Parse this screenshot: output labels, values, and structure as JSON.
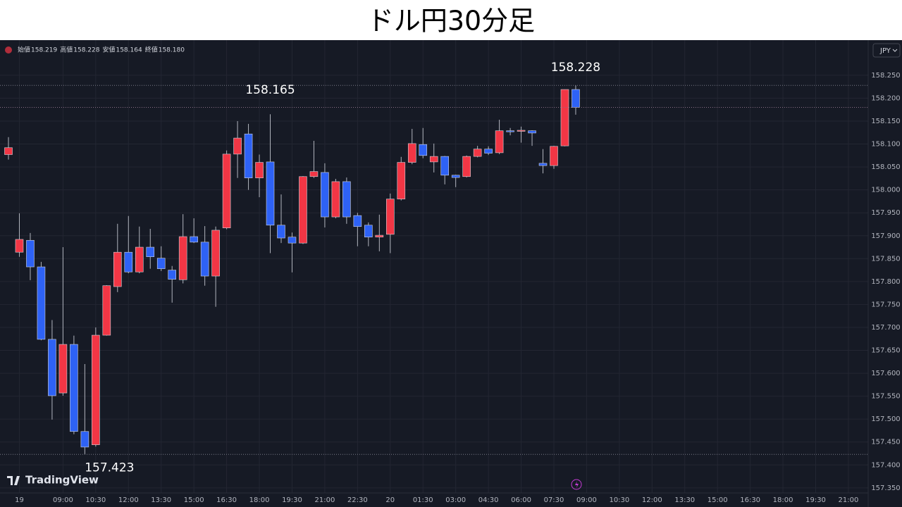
{
  "chart_data": {
    "type": "candlestick",
    "title": "ドル円30分足",
    "header": {
      "labels": [
        "始値",
        "高値",
        "安値",
        "終値"
      ],
      "values": [
        "158.219",
        "158.228",
        "158.164",
        "158.180"
      ]
    },
    "currency": "JPY",
    "brand": "TradingView",
    "up_color": "#f23645",
    "down_color": "#2e62f5",
    "grid": true,
    "ylim": [
      157.339,
      158.322
    ],
    "yticks": [
      {
        "value": 157.35,
        "label": "157.350"
      },
      {
        "value": 157.4,
        "label": "157.400"
      },
      {
        "value": 157.45,
        "label": "157.450"
      },
      {
        "value": 157.5,
        "label": "157.500"
      },
      {
        "value": 157.55,
        "label": "157.550"
      },
      {
        "value": 157.6,
        "label": "157.600"
      },
      {
        "value": 157.65,
        "label": "157.650"
      },
      {
        "value": 157.7,
        "label": "157.700"
      },
      {
        "value": 157.75,
        "label": "157.750"
      },
      {
        "value": 157.8,
        "label": "157.800"
      },
      {
        "value": 157.85,
        "label": "157.850"
      },
      {
        "value": 157.9,
        "label": "157.900"
      },
      {
        "value": 157.95,
        "label": "157.950"
      },
      {
        "value": 158.0,
        "label": "158.000"
      },
      {
        "value": 158.05,
        "label": "158.050"
      },
      {
        "value": 158.1,
        "label": "158.100"
      },
      {
        "value": 158.15,
        "label": "158.150"
      },
      {
        "value": 158.2,
        "label": "158.200"
      },
      {
        "value": 158.25,
        "label": "158.250"
      }
    ],
    "categories": [
      null,
      "19",
      null,
      null,
      null,
      "09:00",
      null,
      null,
      "10:30",
      null,
      null,
      "12:00",
      null,
      null,
      "13:30",
      null,
      null,
      "15:00",
      null,
      null,
      "16:30",
      null,
      null,
      "18:00",
      null,
      null,
      "19:30",
      null,
      null,
      "21:00",
      null,
      null,
      "22:30",
      null,
      null,
      "20",
      null,
      null,
      "01:30",
      null,
      null,
      "03:00",
      null,
      null,
      "04:30",
      null,
      null,
      "06:00",
      null,
      null,
      "07:30",
      null,
      null,
      "09:00",
      null,
      null,
      "10:30",
      null,
      null,
      "12:00",
      null,
      null,
      "13:30",
      null,
      null,
      "15:00",
      null,
      null,
      "16:30",
      null,
      null,
      "18:00",
      null,
      null,
      "19:30",
      null,
      null,
      "21:00"
    ],
    "open": [
      158.077,
      157.864,
      157.89,
      157.832,
      157.674,
      157.557,
      157.663,
      157.473,
      157.444,
      157.683,
      157.789,
      157.864,
      157.821,
      157.875,
      157.851,
      157.825,
      157.804,
      157.898,
      157.886,
      157.812,
      157.917,
      158.078,
      158.122,
      158.026,
      158.061,
      157.923,
      157.897,
      157.884,
      158.029,
      158.038,
      157.941,
      158.018,
      157.944,
      157.923,
      157.897,
      157.903,
      157.98,
      158.06,
      158.099,
      158.061,
      158.073,
      158.032,
      158.029,
      158.073,
      158.089,
      158.081,
      158.129,
      158.13,
      158.129,
      158.058,
      158.053,
      158.096,
      158.219,
      null,
      null,
      null,
      null,
      null,
      null,
      null,
      null,
      null,
      null,
      null,
      null,
      null,
      null,
      null,
      null,
      null,
      null,
      null,
      null,
      null,
      null,
      null,
      null,
      null
    ],
    "high": [
      158.115,
      157.949,
      157.906,
      157.843,
      157.716,
      157.875,
      157.682,
      157.62,
      157.7,
      157.792,
      157.926,
      157.943,
      157.92,
      157.915,
      157.877,
      157.834,
      157.947,
      157.938,
      157.921,
      157.92,
      158.086,
      158.15,
      158.144,
      158.077,
      158.165,
      157.99,
      157.907,
      158.03,
      158.107,
      158.058,
      158.024,
      158.027,
      157.95,
      157.929,
      157.946,
      157.992,
      158.072,
      158.133,
      158.135,
      158.101,
      158.074,
      158.033,
      158.075,
      158.096,
      158.095,
      158.153,
      158.135,
      158.138,
      158.13,
      158.089,
      158.096,
      158.219,
      158.228,
      null,
      null,
      null,
      null,
      null,
      null,
      null,
      null,
      null,
      null,
      null,
      null,
      null,
      null,
      null,
      null,
      null,
      null,
      null,
      null,
      null,
      null,
      null,
      null,
      null
    ],
    "low": [
      158.066,
      157.854,
      157.803,
      157.672,
      157.499,
      157.551,
      157.467,
      157.423,
      157.44,
      157.682,
      157.777,
      157.818,
      157.818,
      157.828,
      157.823,
      157.754,
      157.796,
      157.884,
      157.791,
      157.745,
      157.914,
      158.026,
      158.0,
      157.984,
      157.862,
      157.884,
      157.82,
      157.882,
      158.026,
      157.918,
      157.938,
      157.926,
      157.877,
      157.877,
      157.866,
      157.862,
      157.977,
      158.056,
      158.069,
      158.038,
      158.012,
      158.006,
      158.027,
      158.071,
      158.076,
      158.078,
      158.119,
      158.103,
      158.096,
      158.036,
      158.046,
      158.095,
      158.164,
      null,
      null,
      null,
      null,
      null,
      null,
      null,
      null,
      null,
      null,
      null,
      null,
      null,
      null,
      null,
      null,
      null,
      null,
      null,
      null,
      null,
      null,
      null,
      null,
      null
    ],
    "close": [
      158.092,
      157.892,
      157.832,
      157.674,
      157.551,
      157.663,
      157.473,
      157.439,
      157.683,
      157.791,
      157.864,
      157.821,
      157.875,
      157.854,
      157.828,
      157.805,
      157.898,
      157.886,
      157.812,
      157.912,
      158.078,
      158.113,
      158.026,
      158.06,
      157.923,
      157.895,
      157.884,
      158.029,
      158.04,
      157.941,
      158.018,
      157.941,
      157.92,
      157.897,
      157.901,
      157.98,
      158.06,
      158.101,
      158.075,
      158.073,
      158.032,
      158.027,
      158.073,
      158.089,
      158.08,
      158.129,
      158.127,
      158.13,
      158.124,
      158.053,
      158.095,
      158.219,
      158.18,
      null,
      null,
      null,
      null,
      null,
      null,
      null,
      null,
      null,
      null,
      null,
      null,
      null,
      null,
      null,
      null,
      null,
      null,
      null,
      null,
      null,
      null,
      null,
      null,
      null
    ]
  }
}
